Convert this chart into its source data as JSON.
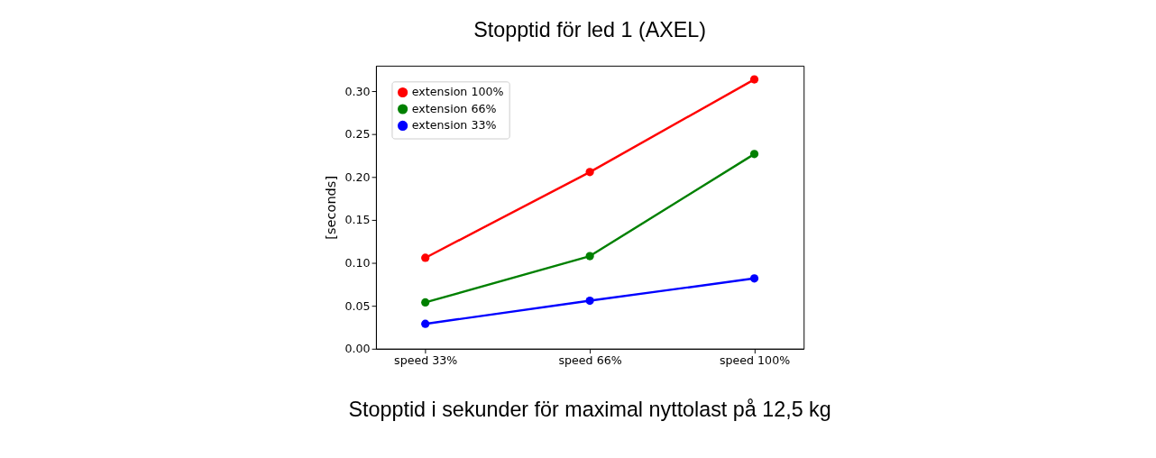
{
  "chart_data": {
    "type": "line",
    "title": "Stopptid för led 1 (AXEL)",
    "ylabel": "[seconds]",
    "categories": [
      "speed 33%",
      "speed 66%",
      "speed 100%"
    ],
    "series": [
      {
        "name": "extension 100%",
        "color": "#ff0000",
        "values": [
          0.106,
          0.206,
          0.314
        ]
      },
      {
        "name": "extension 66%",
        "color": "#008000",
        "values": [
          0.054,
          0.108,
          0.227
        ]
      },
      {
        "name": "extension 33%",
        "color": "#0000ff",
        "values": [
          0.029,
          0.056,
          0.082
        ]
      }
    ],
    "ylim": [
      0,
      0.33
    ],
    "yticks": [
      {
        "value": 0,
        "label": "0.00"
      },
      0.05,
      {
        "value": 0.1,
        "label": "0.10"
      },
      0.15,
      {
        "value": 0.2,
        "label": "0.20"
      },
      0.25,
      {
        "value": 0.3,
        "label": "0.30"
      }
    ],
    "annotations": [
      "Stopptid i sekunder för maximal nyttolast på 12,5 kg"
    ],
    "grid": false,
    "legend": "top left",
    "marker": "circle",
    "line_style": "solid"
  }
}
